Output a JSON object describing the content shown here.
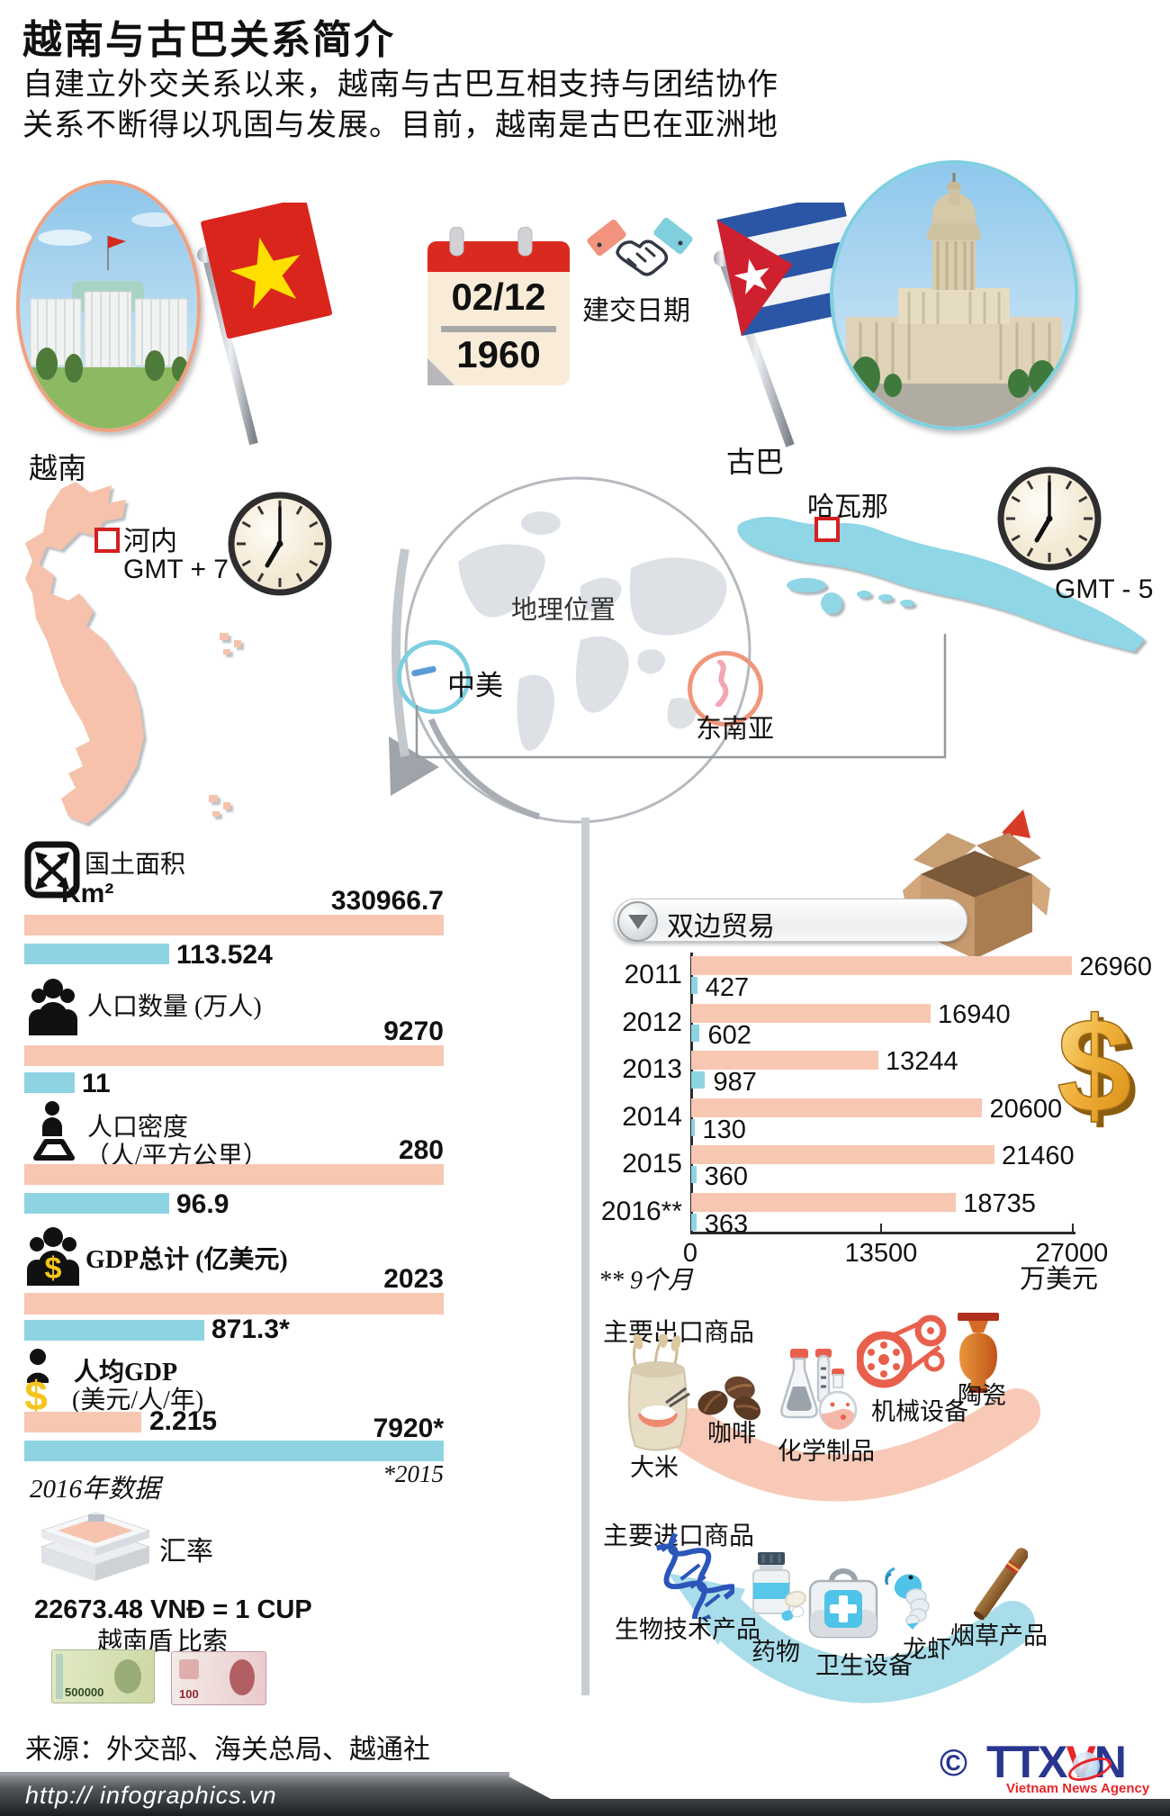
{
  "title": "越南与古巴关系简介",
  "intro": {
    "line1": "自建立外交关系以来，越南与古巴互相支持与团结协作",
    "line2": "关系不断得以巩固与发展。目前，越南是古巴在亚洲地"
  },
  "established": {
    "date": "02/12",
    "year": "1960",
    "label": "建交日期"
  },
  "vietnam": {
    "name": "越南",
    "capital": "河内",
    "timezone": "GMT + 7"
  },
  "cuba": {
    "name": "古巴",
    "capital": "哈瓦那",
    "timezone": "GMT - 5"
  },
  "geo": {
    "title": "地理位置",
    "central_america": "中美",
    "southeast_asia": "东南亚"
  },
  "colors": {
    "vietnam_bar": "#f7c7b2",
    "cuba_bar": "#8ed3e2",
    "accent_red": "#d42a20",
    "gold": "#f0a91e"
  },
  "stats": {
    "area": {
      "label": "国土面积",
      "unit": "Km²",
      "vn": "330966.7",
      "cu": "113.524",
      "vn_pct": 100,
      "cu_pct": 34.6
    },
    "population": {
      "label": "人口数量 (万人)",
      "vn": "9270",
      "cu": "11",
      "vn_pct": 100,
      "cu_pct": 12
    },
    "density": {
      "label": "人口密度",
      "unit": "（人/平方公里）",
      "vn": "280",
      "cu": "96.9",
      "vn_pct": 100,
      "cu_pct": 34.6
    },
    "gdp": {
      "label": "GDP总计 (亿美元)",
      "vn": "2023",
      "cu": "871.3*",
      "vn_pct": 100,
      "cu_pct": 43
    },
    "gdp_per_capita": {
      "label": "人均GDP",
      "unit": "(美元/人/年)",
      "vn": "2.215",
      "cu": "7920*",
      "vn_pct": 28,
      "cu_pct": 100
    },
    "note_year": "2016年数据",
    "note_star": "*2015"
  },
  "trade": {
    "title": "双边贸易",
    "axis_max": 27000,
    "ticks": [
      "0",
      "13500",
      "27000"
    ],
    "unit": "万美元",
    "note": "** 9个月",
    "rows": [
      {
        "year": "2011",
        "vietnam": 26960,
        "cuba": 427
      },
      {
        "year": "2012",
        "vietnam": 16940,
        "cuba": 602
      },
      {
        "year": "2013",
        "vietnam": 13244,
        "cuba": 987
      },
      {
        "year": "2014",
        "vietnam": 20600,
        "cuba": 130
      },
      {
        "year": "2015",
        "vietnam": 21460,
        "cuba": 360
      },
      {
        "year": "2016**",
        "vietnam": 18735,
        "cuba": 363
      }
    ]
  },
  "exports": {
    "title": "主要出口商品",
    "items": [
      {
        "label": "大米"
      },
      {
        "label": "咖啡"
      },
      {
        "label": "化学制品"
      },
      {
        "label": "机械设备"
      },
      {
        "label": "陶瓷"
      }
    ]
  },
  "imports": {
    "title": "主要进口商品",
    "items": [
      {
        "label": "生物技术产品"
      },
      {
        "label": "药物"
      },
      {
        "label": "卫生设备"
      },
      {
        "label": "龙虾"
      },
      {
        "label": "烟草产品"
      }
    ]
  },
  "exchange": {
    "label": "汇率",
    "rate": "22673.48 VNĐ = 1 CUP",
    "vnd_name": "越南盾",
    "peso_name": "比索",
    "vnd_note_value": "500000",
    "cup_note_value": "100"
  },
  "source": "来源：外交部、海关总局、越通社",
  "footer": {
    "url": "http:// infographics.vn",
    "copyright": "©",
    "logo_ttx": "TTX",
    "logo_v": "V",
    "logo_n": "N",
    "logo_sub": "Vietnam News Agency"
  },
  "chart_data": [
    {
      "type": "bar",
      "title": "越南与古巴国家指标对比",
      "orientation": "horizontal",
      "categories": [
        "国土面积 Km²",
        "人口数量 (万人)",
        "人口密度 (人/平方公里)",
        "GDP总计 (亿美元)",
        "人均GDP (美元/人/年)"
      ],
      "series": [
        {
          "name": "越南",
          "values": [
            "330966.7",
            "9270",
            "280",
            "2023",
            "2.215"
          ]
        },
        {
          "name": "古巴",
          "values": [
            "113.524",
            "11",
            "96.9",
            "871.3*",
            "7920*"
          ]
        }
      ],
      "notes": [
        "2016年数据",
        "*2015"
      ],
      "legend_position": "none"
    },
    {
      "type": "bar",
      "title": "双边贸易",
      "orientation": "horizontal",
      "categories": [
        "2011",
        "2012",
        "2013",
        "2014",
        "2015",
        "2016**"
      ],
      "series": [
        {
          "name": "越南(粉色)",
          "values": [
            26960,
            16940,
            13244,
            20600,
            21460,
            18735
          ]
        },
        {
          "name": "古巴(蓝色)",
          "values": [
            427,
            602,
            987,
            130,
            360,
            363
          ]
        }
      ],
      "xlabel": "万美元",
      "xlim": [
        0,
        27000
      ],
      "xticks": [
        0,
        13500,
        27000
      ],
      "note": "** 9个月",
      "grid": false,
      "legend_position": "none"
    }
  ]
}
